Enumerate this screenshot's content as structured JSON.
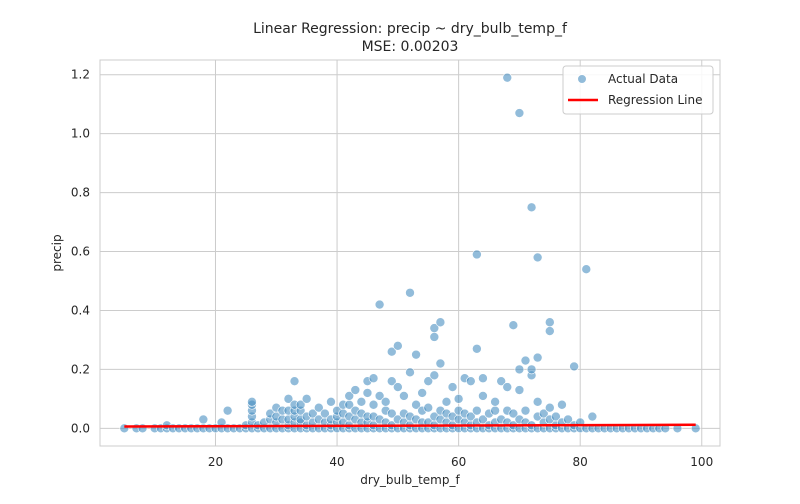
{
  "chart_data": {
    "type": "scatter",
    "title": "Linear Regression: precip ~ dry_bulb_temp_f",
    "subtitle": "MSE: 0.00203",
    "xlabel": "dry_bulb_temp_f",
    "ylabel": "precip",
    "xlim": [
      1,
      103
    ],
    "ylim": [
      -0.06,
      1.25
    ],
    "x_ticks": [
      20,
      40,
      60,
      80,
      100
    ],
    "y_ticks": [
      0.0,
      0.2,
      0.4,
      0.6,
      0.8,
      1.0,
      1.2
    ],
    "x_tick_labels": [
      "20",
      "40",
      "60",
      "80",
      "100"
    ],
    "y_tick_labels": [
      "0.0",
      "0.2",
      "0.4",
      "0.6",
      "0.8",
      "1.0",
      "1.2"
    ],
    "grid": true,
    "legend_position": "top-right",
    "series": [
      {
        "name": "Actual Data",
        "kind": "scatter",
        "color": "#4a8fc2",
        "points": [
          [
            5,
            0
          ],
          [
            7,
            0
          ],
          [
            8,
            0
          ],
          [
            10,
            0
          ],
          [
            11,
            0
          ],
          [
            12,
            0
          ],
          [
            12,
            0.01
          ],
          [
            13,
            0
          ],
          [
            14,
            0
          ],
          [
            15,
            0
          ],
          [
            16,
            0
          ],
          [
            17,
            0
          ],
          [
            18,
            0
          ],
          [
            18,
            0.03
          ],
          [
            19,
            0
          ],
          [
            20,
            0
          ],
          [
            21,
            0
          ],
          [
            21,
            0.02
          ],
          [
            22,
            0
          ],
          [
            22,
            0.06
          ],
          [
            23,
            0
          ],
          [
            24,
            0
          ],
          [
            25,
            0
          ],
          [
            25,
            0.01
          ],
          [
            26,
            0
          ],
          [
            26,
            0.02
          ],
          [
            26,
            0.04
          ],
          [
            26,
            0.06
          ],
          [
            26,
            0.08
          ],
          [
            26,
            0.09
          ],
          [
            27,
            0
          ],
          [
            27,
            0.01
          ],
          [
            28,
            0
          ],
          [
            28,
            0.02
          ],
          [
            29,
            0
          ],
          [
            29,
            0.03
          ],
          [
            29,
            0.05
          ],
          [
            30,
            0
          ],
          [
            30,
            0.02
          ],
          [
            30,
            0.04
          ],
          [
            30,
            0.07
          ],
          [
            31,
            0
          ],
          [
            31,
            0.03
          ],
          [
            31,
            0.06
          ],
          [
            32,
            0
          ],
          [
            32,
            0.01
          ],
          [
            32,
            0.03
          ],
          [
            32,
            0.06
          ],
          [
            32,
            0.1
          ],
          [
            33,
            0
          ],
          [
            33,
            0.02
          ],
          [
            33,
            0.04
          ],
          [
            33,
            0.06
          ],
          [
            33,
            0.08
          ],
          [
            33,
            0.16
          ],
          [
            34,
            0
          ],
          [
            34,
            0.02
          ],
          [
            34,
            0.03
          ],
          [
            34,
            0.06
          ],
          [
            34,
            0.08
          ],
          [
            35,
            0
          ],
          [
            35,
            0.01
          ],
          [
            35,
            0.04
          ],
          [
            35,
            0.1
          ],
          [
            36,
            0
          ],
          [
            36,
            0.02
          ],
          [
            36,
            0.05
          ],
          [
            37,
            0
          ],
          [
            37,
            0.03
          ],
          [
            37,
            0.07
          ],
          [
            38,
            0
          ],
          [
            38,
            0.02
          ],
          [
            38,
            0.05
          ],
          [
            39,
            0
          ],
          [
            39,
            0.01
          ],
          [
            39,
            0.03
          ],
          [
            39,
            0.09
          ],
          [
            40,
            0
          ],
          [
            40,
            0.02
          ],
          [
            40,
            0.04
          ],
          [
            40,
            0.06
          ],
          [
            41,
            0
          ],
          [
            41,
            0.02
          ],
          [
            41,
            0.05
          ],
          [
            41,
            0.08
          ],
          [
            42,
            0
          ],
          [
            42,
            0.01
          ],
          [
            42,
            0.04
          ],
          [
            42,
            0.08
          ],
          [
            42,
            0.11
          ],
          [
            43,
            0
          ],
          [
            43,
            0.03
          ],
          [
            43,
            0.06
          ],
          [
            43,
            0.13
          ],
          [
            44,
            0
          ],
          [
            44,
            0.02
          ],
          [
            44,
            0.05
          ],
          [
            44,
            0.09
          ],
          [
            45,
            0
          ],
          [
            45,
            0.02
          ],
          [
            45,
            0.04
          ],
          [
            45,
            0.12
          ],
          [
            45,
            0.16
          ],
          [
            46,
            0
          ],
          [
            46,
            0.01
          ],
          [
            46,
            0.04
          ],
          [
            46,
            0.08
          ],
          [
            46,
            0.17
          ],
          [
            47,
            0
          ],
          [
            47,
            0.03
          ],
          [
            47,
            0.11
          ],
          [
            47,
            0.42
          ],
          [
            48,
            0
          ],
          [
            48,
            0.02
          ],
          [
            48,
            0.06
          ],
          [
            48,
            0.09
          ],
          [
            49,
            0
          ],
          [
            49,
            0.01
          ],
          [
            49,
            0.05
          ],
          [
            49,
            0.16
          ],
          [
            49,
            0.26
          ],
          [
            50,
            0
          ],
          [
            50,
            0.03
          ],
          [
            50,
            0.14
          ],
          [
            50,
            0.28
          ],
          [
            51,
            0
          ],
          [
            51,
            0.02
          ],
          [
            51,
            0.05
          ],
          [
            51,
            0.11
          ],
          [
            52,
            0
          ],
          [
            52,
            0.01
          ],
          [
            52,
            0.04
          ],
          [
            52,
            0.19
          ],
          [
            52,
            0.46
          ],
          [
            53,
            0
          ],
          [
            53,
            0.03
          ],
          [
            53,
            0.08
          ],
          [
            53,
            0.25
          ],
          [
            54,
            0
          ],
          [
            54,
            0.02
          ],
          [
            54,
            0.06
          ],
          [
            54,
            0.12
          ],
          [
            55,
            0
          ],
          [
            55,
            0.02
          ],
          [
            55,
            0.07
          ],
          [
            55,
            0.16
          ],
          [
            56,
            0
          ],
          [
            56,
            0.01
          ],
          [
            56,
            0.04
          ],
          [
            56,
            0.18
          ],
          [
            56,
            0.31
          ],
          [
            56,
            0.34
          ],
          [
            57,
            0
          ],
          [
            57,
            0.03
          ],
          [
            57,
            0.06
          ],
          [
            57,
            0.22
          ],
          [
            57,
            0.36
          ],
          [
            58,
            0
          ],
          [
            58,
            0.02
          ],
          [
            58,
            0.05
          ],
          [
            58,
            0.09
          ],
          [
            59,
            0
          ],
          [
            59,
            0.01
          ],
          [
            59,
            0.04
          ],
          [
            59,
            0.14
          ],
          [
            60,
            0
          ],
          [
            60,
            0.03
          ],
          [
            60,
            0.06
          ],
          [
            60,
            0.1
          ],
          [
            61,
            0
          ],
          [
            61,
            0.02
          ],
          [
            61,
            0.05
          ],
          [
            61,
            0.17
          ],
          [
            62,
            0
          ],
          [
            62,
            0.01
          ],
          [
            62,
            0.04
          ],
          [
            62,
            0.16
          ],
          [
            63,
            0
          ],
          [
            63,
            0.02
          ],
          [
            63,
            0.06
          ],
          [
            63,
            0.27
          ],
          [
            63,
            0.59
          ],
          [
            64,
            0
          ],
          [
            64,
            0.03
          ],
          [
            64,
            0.11
          ],
          [
            64,
            0.17
          ],
          [
            65,
            0
          ],
          [
            65,
            0.01
          ],
          [
            65,
            0.05
          ],
          [
            66,
            0
          ],
          [
            66,
            0.02
          ],
          [
            66,
            0.06
          ],
          [
            66,
            0.09
          ],
          [
            67,
            0
          ],
          [
            67,
            0.03
          ],
          [
            67,
            0.16
          ],
          [
            68,
            0
          ],
          [
            68,
            0.02
          ],
          [
            68,
            0.06
          ],
          [
            68,
            0.14
          ],
          [
            68,
            1.19
          ],
          [
            69,
            0
          ],
          [
            69,
            0.01
          ],
          [
            69,
            0.05
          ],
          [
            69,
            0.35
          ],
          [
            70,
            0
          ],
          [
            70,
            0.03
          ],
          [
            70,
            0.13
          ],
          [
            70,
            0.2
          ],
          [
            70,
            1.07
          ],
          [
            71,
            0
          ],
          [
            71,
            0.02
          ],
          [
            71,
            0.06
          ],
          [
            71,
            0.23
          ],
          [
            72,
            0
          ],
          [
            72,
            0.01
          ],
          [
            72,
            0.18
          ],
          [
            72,
            0.2
          ],
          [
            72,
            0.75
          ],
          [
            73,
            0
          ],
          [
            73,
            0.04
          ],
          [
            73,
            0.09
          ],
          [
            73,
            0.24
          ],
          [
            73,
            0.58
          ],
          [
            74,
            0
          ],
          [
            74,
            0.02
          ],
          [
            74,
            0.05
          ],
          [
            75,
            0
          ],
          [
            75,
            0.03
          ],
          [
            75,
            0.07
          ],
          [
            75,
            0.33
          ],
          [
            75,
            0.36
          ],
          [
            76,
            0
          ],
          [
            76,
            0.01
          ],
          [
            76,
            0.04
          ],
          [
            77,
            0
          ],
          [
            77,
            0.02
          ],
          [
            77,
            0.08
          ],
          [
            78,
            0
          ],
          [
            78,
            0.03
          ],
          [
            79,
            0
          ],
          [
            79,
            0.01
          ],
          [
            79,
            0.21
          ],
          [
            80,
            0
          ],
          [
            80,
            0.02
          ],
          [
            81,
            0
          ],
          [
            81,
            0.54
          ],
          [
            82,
            0
          ],
          [
            82,
            0.04
          ],
          [
            83,
            0
          ],
          [
            84,
            0
          ],
          [
            85,
            0
          ],
          [
            86,
            0
          ],
          [
            87,
            0
          ],
          [
            88,
            0
          ],
          [
            89,
            0
          ],
          [
            90,
            0
          ],
          [
            91,
            0
          ],
          [
            92,
            0
          ],
          [
            93,
            0
          ],
          [
            94,
            0
          ],
          [
            96,
            0
          ],
          [
            99,
            0
          ]
        ]
      },
      {
        "name": "Regression Line",
        "kind": "line",
        "color": "#ff0000",
        "x": [
          5,
          99
        ],
        "y": [
          0.006,
          0.012
        ]
      }
    ]
  }
}
